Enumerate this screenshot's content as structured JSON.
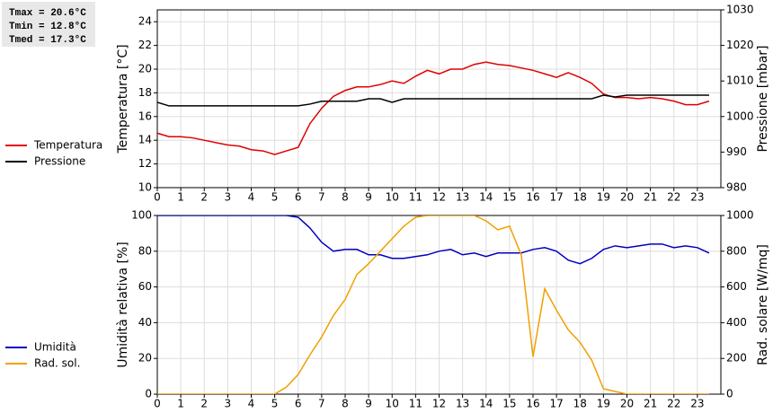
{
  "stats": [
    "Tmax = 20.6°C",
    "Tmin = 12.8°C",
    "Tmed = 17.3°C"
  ],
  "chart_data": [
    {
      "type": "line",
      "ylabel": "Temperatura [°C]",
      "y2label": "Pressione [mbar]",
      "x": [
        0,
        0.5,
        1,
        1.5,
        2,
        2.5,
        3,
        3.5,
        4,
        4.5,
        5,
        5.5,
        6,
        6.5,
        7,
        7.5,
        8,
        8.5,
        9,
        9.5,
        10,
        10.5,
        11,
        11.5,
        12,
        12.5,
        13,
        13.5,
        14,
        14.5,
        15,
        15.5,
        16,
        16.5,
        17,
        17.5,
        18,
        18.5,
        19,
        19.5,
        20,
        20.5,
        21,
        21.5,
        22,
        22.5,
        23,
        23.5
      ],
      "xlim": [
        0,
        24
      ],
      "xticks": [
        0,
        1,
        2,
        3,
        4,
        5,
        6,
        7,
        8,
        9,
        10,
        11,
        12,
        13,
        14,
        15,
        16,
        17,
        18,
        19,
        20,
        21,
        22,
        23
      ],
      "ylim": [
        10,
        25
      ],
      "yticks": [
        10,
        12,
        14,
        16,
        18,
        20,
        22,
        24
      ],
      "y2lim": [
        980,
        1030
      ],
      "y2ticks": [
        980,
        990,
        1000,
        1010,
        1020,
        1030
      ],
      "grid": true,
      "series": [
        {
          "name": "Temperatura",
          "color": "#e00000",
          "values": [
            14.6,
            14.3,
            14.3,
            14.2,
            14.0,
            13.8,
            13.6,
            13.5,
            13.2,
            13.1,
            12.8,
            13.1,
            13.4,
            15.4,
            16.7,
            17.7,
            18.2,
            18.5,
            18.5,
            18.7,
            19.0,
            18.8,
            19.4,
            19.9,
            19.6,
            20.0,
            20.0,
            20.4,
            20.6,
            20.4,
            20.3,
            20.1,
            19.9,
            19.6,
            19.3,
            19.7,
            19.3,
            18.8,
            17.9,
            17.6,
            17.6,
            17.5,
            17.6,
            17.5,
            17.3,
            17.0,
            17.0,
            17.3
          ]
        },
        {
          "name": "Pressione",
          "color": "#000000",
          "axis": "y2",
          "values": [
            1004,
            1003,
            1003,
            1003,
            1003,
            1003,
            1003,
            1003,
            1003,
            1003,
            1003,
            1003,
            1003,
            1003.5,
            1004.3,
            1004.3,
            1004.3,
            1004.3,
            1005,
            1005,
            1004,
            1005,
            1005,
            1005,
            1005,
            1005,
            1005,
            1005,
            1005,
            1005,
            1005,
            1005,
            1005,
            1005,
            1005,
            1005,
            1005,
            1005,
            1006,
            1005.5,
            1006,
            1006,
            1006,
            1006,
            1006,
            1006,
            1006,
            1006
          ]
        }
      ]
    },
    {
      "type": "line",
      "ylabel": "Umidità relativa [%]",
      "y2label": "Rad. solare [W/mq]",
      "x": [
        0,
        0.5,
        1,
        1.5,
        2,
        2.5,
        3,
        3.5,
        4,
        4.5,
        5,
        5.5,
        6,
        6.5,
        7,
        7.5,
        8,
        8.5,
        9,
        9.5,
        10,
        10.5,
        11,
        11.5,
        12,
        12.5,
        13,
        13.5,
        14,
        14.5,
        15,
        15.5,
        16,
        16.5,
        17,
        17.5,
        18,
        18.5,
        19,
        19.5,
        20,
        20.5,
        21,
        21.5,
        22,
        22.5,
        23,
        23.5
      ],
      "xlim": [
        0,
        24
      ],
      "xticks": [
        0,
        1,
        2,
        3,
        4,
        5,
        6,
        7,
        8,
        9,
        10,
        11,
        12,
        13,
        14,
        15,
        16,
        17,
        18,
        19,
        20,
        21,
        22,
        23
      ],
      "ylim": [
        0,
        100
      ],
      "yticks": [
        0,
        20,
        40,
        60,
        80,
        100
      ],
      "y2lim": [
        0,
        1000
      ],
      "y2ticks": [
        0,
        200,
        400,
        600,
        800,
        1000
      ],
      "grid": true,
      "series": [
        {
          "name": "Umidità",
          "color": "#0000c0",
          "values": [
            100,
            100,
            100,
            100,
            100,
            100,
            100,
            100,
            100,
            100,
            100,
            100,
            99,
            93,
            85,
            80,
            81,
            81,
            78,
            78,
            76,
            76,
            77,
            78,
            80,
            81,
            78,
            79,
            77,
            79,
            79,
            79,
            81,
            82,
            80,
            75,
            73,
            76,
            81,
            83,
            82,
            83,
            84,
            84,
            82,
            83,
            82,
            79
          ]
        },
        {
          "name": "Rad. sol.",
          "color": "#f0a000",
          "axis": "y2",
          "values": [
            0,
            0,
            0,
            0,
            0,
            0,
            0,
            0,
            0,
            0,
            0,
            40,
            110,
            220,
            320,
            440,
            530,
            670,
            730,
            800,
            870,
            940,
            990,
            1000,
            1000,
            1000,
            1000,
            1000,
            970,
            920,
            940,
            780,
            210,
            590,
            470,
            360,
            290,
            190,
            30,
            15,
            0,
            0,
            0,
            0,
            0,
            0,
            0,
            0
          ]
        }
      ]
    }
  ]
}
